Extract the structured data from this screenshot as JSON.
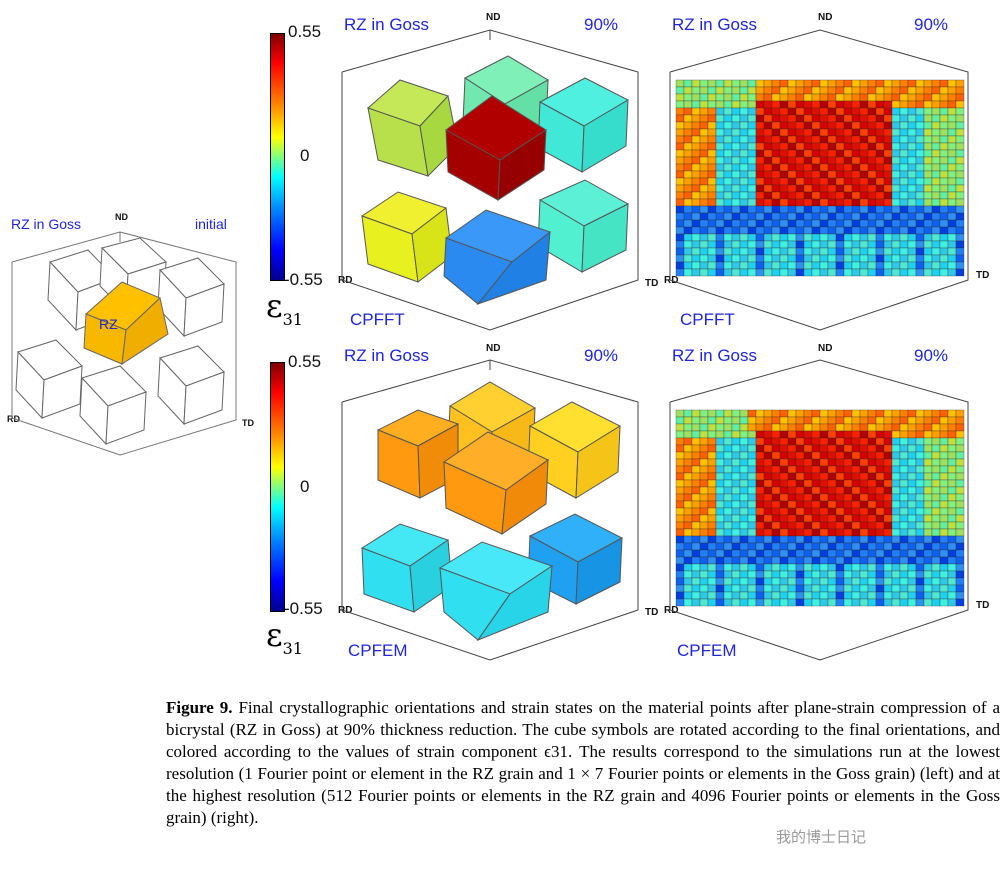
{
  "figure": {
    "caption_label": "Figure 9.",
    "caption_text": "Final crystallographic orientations and strain states on the material points after plane-strain compression of a bicrystal (RZ in Goss) at 90% thickness reduction. The cube symbols are rotated according to the final orientations, and colored according to the values of strain component ϵ31. The results correspond to the simulations run at the lowest resolution (1 Fourier point or element in the RZ grain and 1 × 7 Fourier points or elements in the Goss grain) (left) and at the highest resolution (512 Fourier points or elements in the RZ grain and 4096 Fourier points or elements in the Goss grain) (right)."
  },
  "initial_panel": {
    "title": "RZ in Goss",
    "state": "initial",
    "axis_nd": "ND",
    "axis_rd": "RD",
    "axis_td": "TD",
    "center_label": "RZ"
  },
  "colorbar": {
    "max_label": "0.55",
    "mid_label": "0",
    "min_label": "-0.55",
    "symbol": "ε",
    "subscript": "31",
    "colors": [
      "#800000",
      "#ff0000",
      "#ff8000",
      "#ffff00",
      "#80ff80",
      "#00ffff",
      "#0080ff",
      "#0000ff",
      "#00008f"
    ]
  },
  "panels": [
    {
      "title": "RZ in Goss",
      "reduction": "90%",
      "nd": "ND",
      "rd": "RD",
      "td": "TD",
      "method": "CPFFT",
      "resolution": "lowest"
    },
    {
      "title": "RZ in Goss",
      "reduction": "90%",
      "nd": "ND",
      "rd": "RD",
      "td": "TD",
      "method": "CPFFT",
      "resolution": "highest"
    },
    {
      "title": "RZ in Goss",
      "reduction": "90%",
      "nd": "ND",
      "rd": "RD",
      "td": "TD",
      "method": "CPFEM",
      "resolution": "lowest"
    },
    {
      "title": "RZ in Goss",
      "reduction": "90%",
      "nd": "ND",
      "rd": "RD",
      "td": "TD",
      "method": "CPFEM",
      "resolution": "highest"
    }
  ],
  "cube_colors": {
    "cpfft_low": {
      "center": "#a50000",
      "top_left": "#b8e04a",
      "top_mid": "#70f0b0",
      "top_right": "#40e8d8",
      "bot_left": "#e8f020",
      "bot_mid": "#2a8af0",
      "bot_right": "#50f0d0",
      "back": "#60e8c0"
    },
    "cpfem_low": {
      "center": "#ff9a10",
      "top_left": "#ff9a10",
      "top_mid": "#ffc020",
      "top_right": "#ffd020",
      "bot_left": "#30e0f0",
      "bot_mid": "#30e0f0",
      "bot_right": "#20a0f0",
      "back": "#30d0f0"
    }
  },
  "watermark": "我的博士日记"
}
